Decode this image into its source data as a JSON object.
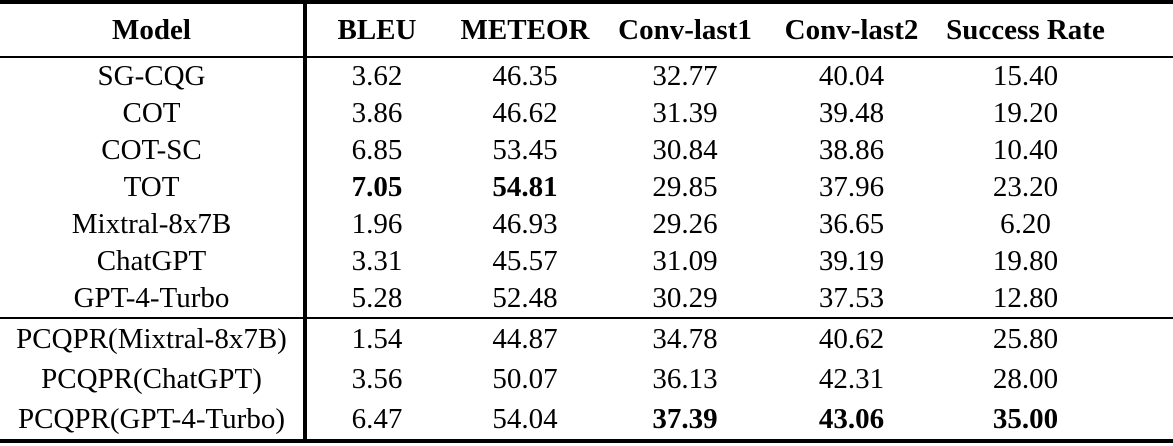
{
  "colors": {
    "background": "#ffffff",
    "text": "#000000",
    "rule": "#000000"
  },
  "table": {
    "columns": [
      "Model",
      "BLEU",
      "METEOR",
      "Conv-last1",
      "Conv-last2",
      "Success Rate"
    ],
    "sections": [
      {
        "name": "baselines",
        "rows": [
          {
            "model": "SG-CQG",
            "values": [
              "3.62",
              "46.35",
              "32.77",
              "40.04",
              "15.40"
            ],
            "bold": [
              false,
              false,
              false,
              false,
              false
            ]
          },
          {
            "model": "COT",
            "values": [
              "3.86",
              "46.62",
              "31.39",
              "39.48",
              "19.20"
            ],
            "bold": [
              false,
              false,
              false,
              false,
              false
            ]
          },
          {
            "model": "COT-SC",
            "values": [
              "6.85",
              "53.45",
              "30.84",
              "38.86",
              "10.40"
            ],
            "bold": [
              false,
              false,
              false,
              false,
              false
            ]
          },
          {
            "model": "TOT",
            "values": [
              "7.05",
              "54.81",
              "29.85",
              "37.96",
              "23.20"
            ],
            "bold": [
              true,
              true,
              false,
              false,
              false
            ]
          },
          {
            "model": "Mixtral-8x7B",
            "values": [
              "1.96",
              "46.93",
              "29.26",
              "36.65",
              "6.20"
            ],
            "bold": [
              false,
              false,
              false,
              false,
              false
            ]
          },
          {
            "model": "ChatGPT",
            "values": [
              "3.31",
              "45.57",
              "31.09",
              "39.19",
              "19.80"
            ],
            "bold": [
              false,
              false,
              false,
              false,
              false
            ]
          },
          {
            "model": "GPT-4-Turbo",
            "values": [
              "5.28",
              "52.48",
              "30.29",
              "37.53",
              "12.80"
            ],
            "bold": [
              false,
              false,
              false,
              false,
              false
            ]
          }
        ]
      },
      {
        "name": "pcqpr",
        "rows": [
          {
            "model": "PCQPR(Mixtral-8x7B)",
            "values": [
              "1.54",
              "44.87",
              "34.78",
              "40.62",
              "25.80"
            ],
            "bold": [
              false,
              false,
              false,
              false,
              false
            ]
          },
          {
            "model": "PCQPR(ChatGPT)",
            "values": [
              "3.56",
              "50.07",
              "36.13",
              "42.31",
              "28.00"
            ],
            "bold": [
              false,
              false,
              false,
              false,
              false
            ]
          },
          {
            "model": "PCQPR(GPT-4-Turbo)",
            "values": [
              "6.47",
              "54.04",
              "37.39",
              "43.06",
              "35.00"
            ],
            "bold": [
              false,
              false,
              true,
              true,
              true
            ]
          }
        ]
      }
    ]
  }
}
